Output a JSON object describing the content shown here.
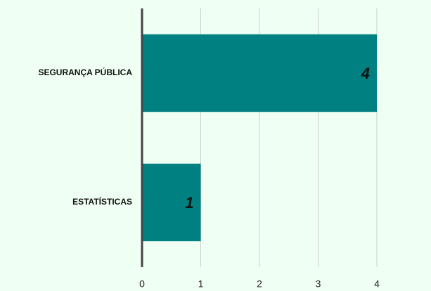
{
  "chart_data": {
    "type": "bar",
    "orientation": "horizontal",
    "categories": [
      "SEGURANÇA PÚBLICA",
      "ESTATÍSTICAS"
    ],
    "values": [
      4,
      1
    ],
    "color": "#008080",
    "xlim": [
      0,
      4
    ],
    "xticks": [
      0,
      1,
      2,
      3,
      4
    ],
    "grid": true
  }
}
